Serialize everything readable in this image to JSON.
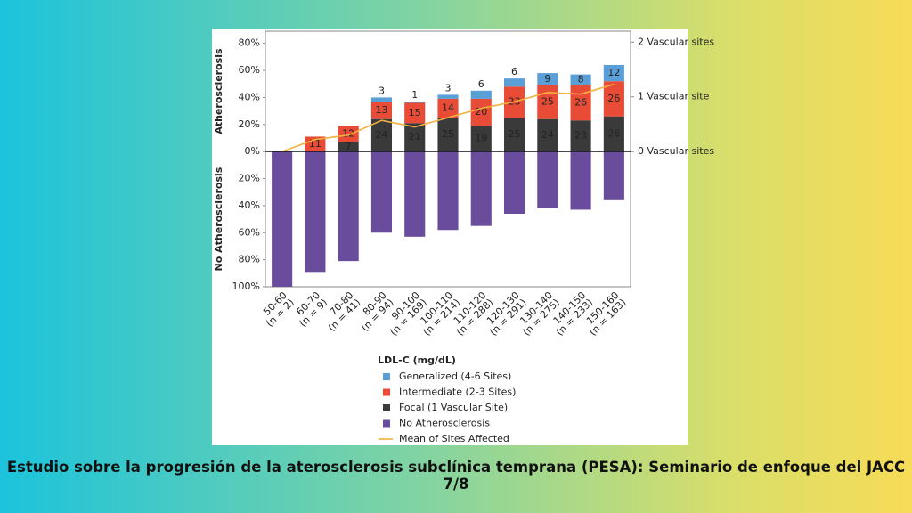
{
  "chart_data": {
    "type": "bar",
    "categories": [
      "50-60",
      "60-70",
      "70-80",
      "80-90",
      "90-100",
      "100-110",
      "110-120",
      "120-130",
      "130-140",
      "140-150",
      "150-160"
    ],
    "category_counts": [
      "(n = 2)",
      "(n = 9)",
      "(n = 41)",
      "(n = 94)",
      "(n = 169)",
      "(n = 214)",
      "(n = 288)",
      "(n = 291)",
      "(n = 275)",
      "(n = 233)",
      "(n = 163)"
    ],
    "xlabel": "LDL-C (mg/dL)",
    "ylabel_top": "Atherosclerosis",
    "ylabel_bottom": "No Atherosclerosis",
    "series": [
      {
        "name": "Generalized (4-6 Sites)",
        "color": "#5b9fd8",
        "values": [
          0,
          0,
          0,
          3,
          1,
          3,
          6,
          6,
          9,
          8,
          12
        ]
      },
      {
        "name": "Intermediate (2-3 Sites)",
        "color": "#e84c36",
        "values": [
          0,
          11,
          12,
          13,
          15,
          14,
          20,
          23,
          25,
          26,
          26
        ]
      },
      {
        "name": "Focal (1 Vascular Site)",
        "color": "#3a3a3a",
        "values": [
          0,
          0,
          7,
          24,
          21,
          25,
          19,
          25,
          24,
          23,
          26
        ]
      },
      {
        "name": "No Atherosclerosis",
        "color": "#6a4c9c",
        "values": [
          -100,
          -89,
          -81,
          -60,
          -63,
          -58,
          -55,
          -46,
          -42,
          -43,
          -36
        ]
      },
      {
        "name": "Mean of Sites Affected",
        "color": "#f2b13f",
        "type": "line",
        "axis": "y2",
        "values": [
          0,
          0.22,
          0.3,
          0.57,
          0.45,
          0.62,
          0.79,
          0.91,
          1.08,
          1.05,
          1.23
        ]
      }
    ],
    "ylim": [
      -100,
      89
    ],
    "yticks": [
      {
        "value": 80,
        "label": "80%"
      },
      {
        "value": 60,
        "label": "60%"
      },
      {
        "value": 40,
        "label": "40%"
      },
      {
        "value": 20,
        "label": "20%"
      },
      {
        "value": 0,
        "label": "0%"
      },
      {
        "value": -20,
        "label": "20%"
      },
      {
        "value": -40,
        "label": "40%"
      },
      {
        "value": -60,
        "label": "60%"
      },
      {
        "value": -80,
        "label": "80%"
      },
      {
        "value": -100,
        "label": "100%"
      }
    ],
    "y2lim": [
      -2.47,
      2.2
    ],
    "y2ticks": [
      {
        "value": 0,
        "label": "0 Vascular sites"
      },
      {
        "value": 1,
        "label": "1 Vascular site"
      },
      {
        "value": 2,
        "label": "2 Vascular sites"
      }
    ],
    "grid": false
  },
  "caption": "Estudio sobre la progresión de la aterosclerosis subclínica temprana (PESA): Seminario de enfoque del JACC 7/8"
}
